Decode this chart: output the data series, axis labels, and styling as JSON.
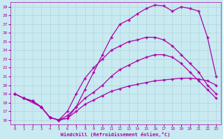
{
  "background_color": "#c8eaf0",
  "grid_color": "#b0d4df",
  "line_color": "#aa00aa",
  "xlabel": "Windchill (Refroidissement éolien,°C)",
  "xlim": [
    -0.5,
    23.5
  ],
  "ylim": [
    15.5,
    29.5
  ],
  "yticks": [
    16,
    17,
    18,
    19,
    20,
    21,
    22,
    23,
    24,
    25,
    26,
    27,
    28,
    29
  ],
  "xticks": [
    0,
    1,
    2,
    3,
    4,
    5,
    6,
    7,
    8,
    9,
    10,
    11,
    12,
    13,
    14,
    15,
    16,
    17,
    18,
    19,
    20,
    21,
    22,
    23
  ],
  "line1_x": [
    0,
    1,
    2,
    3,
    4,
    5,
    6,
    7,
    8,
    9,
    10,
    11,
    12,
    13,
    14,
    15,
    16,
    17,
    18,
    19,
    20,
    21,
    22,
    23
  ],
  "line1_y": [
    19.0,
    18.5,
    18.2,
    17.5,
    16.3,
    16.0,
    16.2,
    17.0,
    17.8,
    18.3,
    18.8,
    19.3,
    19.6,
    19.9,
    20.1,
    20.3,
    20.5,
    20.6,
    20.7,
    20.8,
    20.8,
    20.7,
    20.5,
    20.0
  ],
  "line2_x": [
    0,
    1,
    2,
    3,
    4,
    5,
    6,
    7,
    8,
    9,
    10,
    11,
    12,
    13,
    14,
    15,
    16,
    17,
    18,
    19,
    20,
    21,
    22,
    23
  ],
  "line2_y": [
    19.0,
    18.5,
    18.2,
    17.5,
    16.3,
    16.0,
    16.5,
    17.5,
    18.5,
    19.2,
    20.0,
    21.0,
    21.8,
    22.3,
    22.8,
    23.2,
    23.5,
    23.5,
    23.2,
    22.5,
    21.5,
    20.5,
    19.5,
    18.5
  ],
  "line3_x": [
    0,
    1,
    2,
    3,
    4,
    5,
    6,
    7,
    8,
    9,
    10,
    11,
    12,
    13,
    14,
    15,
    16,
    17,
    18,
    19,
    20,
    21,
    22,
    23
  ],
  "line3_y": [
    19.0,
    18.5,
    18.2,
    17.5,
    16.3,
    16.0,
    17.0,
    19.0,
    20.8,
    22.0,
    23.0,
    24.0,
    24.5,
    25.0,
    25.2,
    25.5,
    25.5,
    25.2,
    24.5,
    23.5,
    22.5,
    21.5,
    20.0,
    19.0
  ],
  "line4_x": [
    1,
    3,
    4,
    5,
    6,
    7,
    8,
    9,
    10,
    11,
    12,
    13,
    14,
    15,
    16,
    17,
    18,
    19,
    20,
    21,
    22,
    23
  ],
  "line4_y": [
    18.5,
    17.5,
    16.3,
    16.0,
    16.2,
    17.5,
    19.5,
    21.5,
    23.5,
    25.5,
    27.0,
    27.5,
    28.2,
    28.8,
    29.2,
    29.1,
    28.5,
    29.0,
    28.8,
    28.5,
    25.5,
    21.0
  ],
  "markersize": 2.5,
  "linewidth": 0.9
}
